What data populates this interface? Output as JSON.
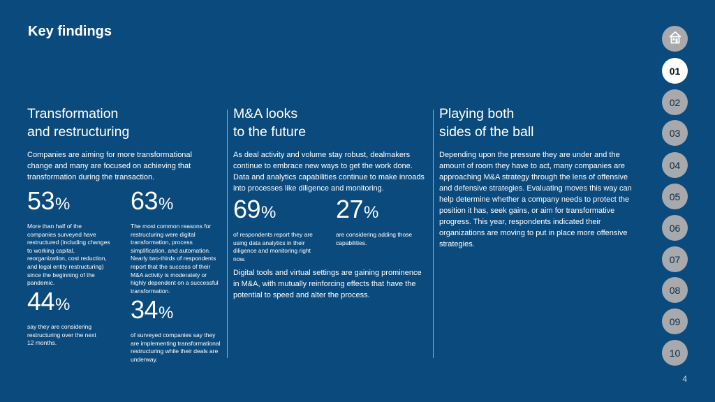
{
  "page": {
    "title": "Key findings",
    "page_number": "4"
  },
  "col1": {
    "heading_l1": "Transformation",
    "heading_l2": "and restructuring",
    "lead": "Companies are aiming for more transformational change and many are focused on achieving that transformation during the transaction.",
    "stats": [
      {
        "num": "53",
        "pct": "%",
        "desc": "More than half of the companies surveyed have restructured (including changes to working capital, reorganization, cost reduction, and legal entity restructuring) since the beginning of the pandemic."
      },
      {
        "num": "63",
        "pct": "%",
        "desc": "The most common reasons for restructuring were digital transformation, process simplification, and automation. Nearly two-thirds of respondents report that the success of their M&A activity is moderately or highly dependent on a successful transformation."
      },
      {
        "num": "44",
        "pct": "%",
        "desc": "say they are considering restructuring over the next 12 months."
      },
      {
        "num": "34",
        "pct": "%",
        "desc": "of surveyed companies say they are implementing transformational restructuring while their deals are underway."
      }
    ]
  },
  "col2": {
    "heading_l1": "M&A looks",
    "heading_l2": "to the future",
    "lead": "As deal activity and volume stay robust, dealmakers continue to embrace new ways to get the work done. Data and analytics capabilities continue to make inroads into processes like diligence and monitoring.",
    "stats": [
      {
        "num": "69",
        "pct": "%",
        "desc": "of respondents report they are using data analytics in their diligence and monitoring right now."
      },
      {
        "num": "27",
        "pct": "%",
        "desc": "are considering adding those capabilities."
      }
    ],
    "footer": "Digital tools and virtual settings are gaining prominence in M&A, with mutually reinforcing effects that have the potential to speed and alter the process."
  },
  "col3": {
    "heading_l1": "Playing both",
    "heading_l2": "sides of the ball",
    "lead": "Depending upon the pressure they are under and the amount of room they have to act, many companies are approaching M&A strategy through the lens of offensive and defensive strategies. Evaluating moves this way can help determine whether a company needs to protect the position it has, seek gains, or aim for transformative progress. This year, respondents indicated their organizations are moving to put in place more offensive strategies."
  },
  "nav": {
    "home_icon": "house-icon",
    "items": [
      "01",
      "02",
      "03",
      "04",
      "05",
      "06",
      "07",
      "08",
      "09",
      "10"
    ],
    "active": "01"
  }
}
